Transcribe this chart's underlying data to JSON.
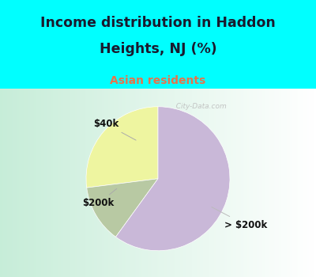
{
  "title_line1": "Income distribution in Haddon",
  "title_line2": "Heights, NJ (%)",
  "subtitle": "Asian residents",
  "slices": [
    {
      "label": "$40k",
      "value": 27,
      "color": "#eef5a0"
    },
    {
      "label": "$200k",
      "value": 13,
      "color": "#b8c9a3"
    },
    {
      "label": "> $200k",
      "value": 60,
      "color": "#c9b8d8"
    }
  ],
  "startangle": 90,
  "bg_color_top": "#00ffff",
  "title_color": "#1a1a2e",
  "subtitle_color": "#e8734a",
  "watermark": "  City-Data.com",
  "label_color": "#111111",
  "label_fontsize": 8.5,
  "title_fontsize": 12.5,
  "subtitle_fontsize": 10
}
